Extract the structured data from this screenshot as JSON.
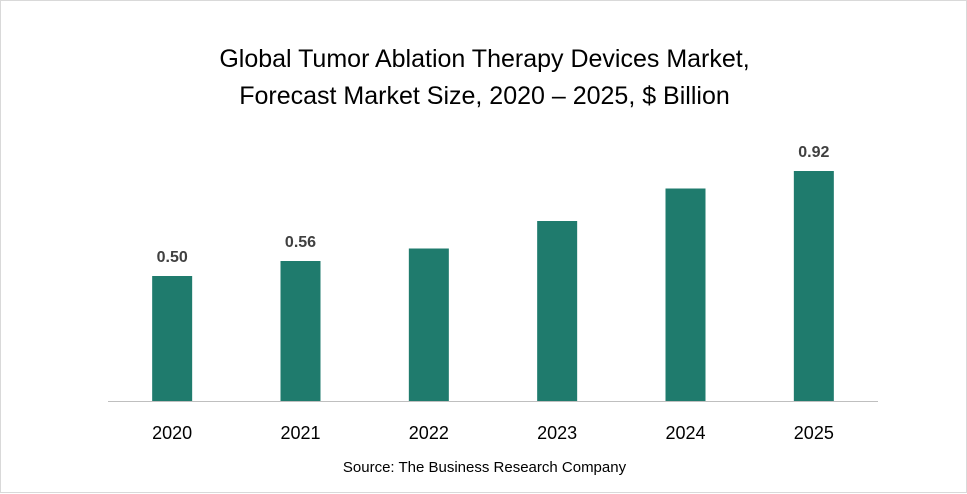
{
  "chart_data": {
    "type": "bar",
    "title_line1": "Global Tumor Ablation Therapy Devices Market,",
    "title_line2": "Forecast Market Size, 2020 – 2025, $ Billion",
    "categories": [
      "2020",
      "2021",
      "2022",
      "2023",
      "2024",
      "2025"
    ],
    "values": [
      0.5,
      0.56,
      0.61,
      0.72,
      0.85,
      0.92
    ],
    "data_labels": {
      "0": "0.50",
      "1": "0.56",
      "5": "0.92"
    },
    "xlabel": "",
    "ylabel": "",
    "ylim": [
      0,
      1.0
    ],
    "grid": false,
    "bar_color": "#1f7b6d",
    "source": "Source: The Business Research Company"
  }
}
